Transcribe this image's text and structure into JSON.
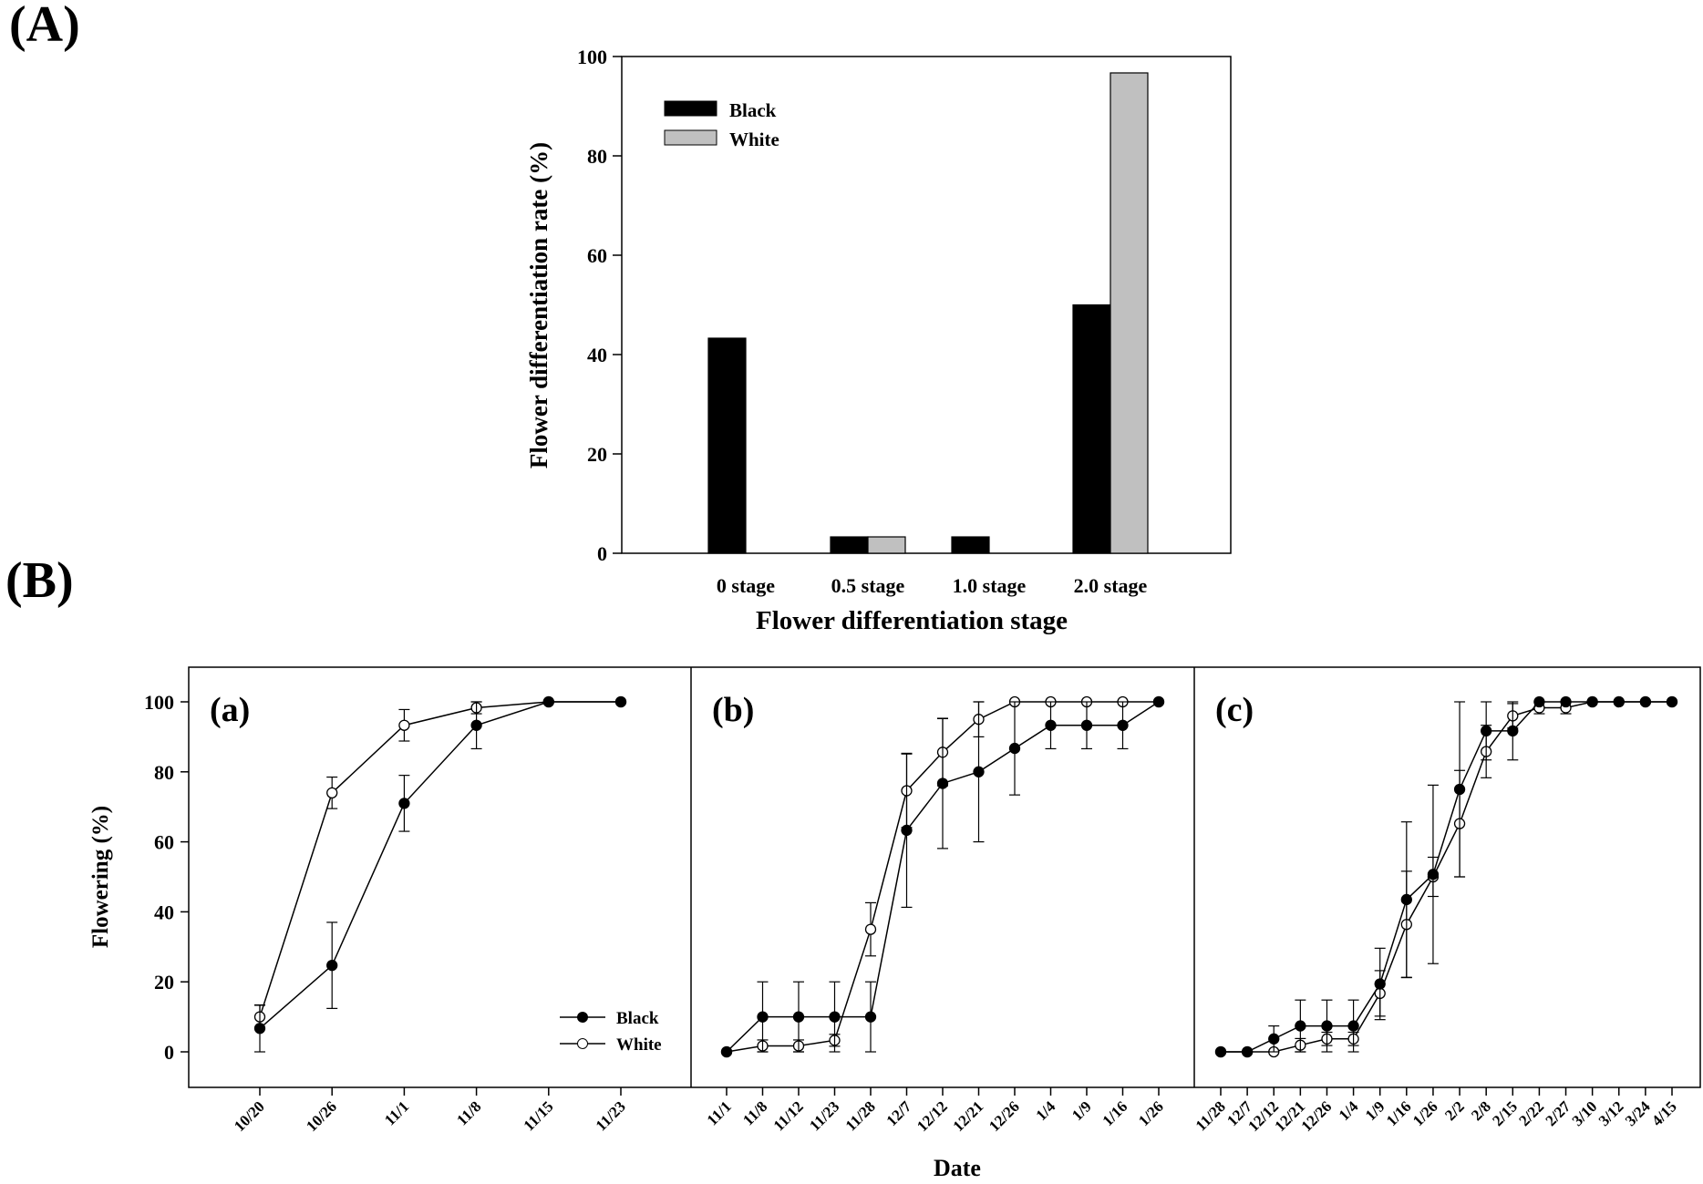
{
  "figure": {
    "panel_a_label": "(A)",
    "panel_b_label": "(B)"
  },
  "chart_data": [
    {
      "id": "A",
      "type": "bar",
      "title": "",
      "xlabel": "Flower differentiation stage",
      "ylabel": "Flower differentiation rate (%)",
      "categories": [
        "0 stage",
        "0.5 stage",
        "1.0 stage",
        "2.0 stage"
      ],
      "ylim": [
        0,
        100
      ],
      "yticks": [
        0,
        20,
        40,
        60,
        80,
        100
      ],
      "grid": false,
      "legend_position": "top-left",
      "series": [
        {
          "name": "Black",
          "color": "#000000",
          "values": [
            43.3,
            3.3,
            3.3,
            50.0
          ]
        },
        {
          "name": "White",
          "color": "#c0c0c0",
          "values": [
            0,
            3.3,
            0,
            96.7
          ]
        }
      ]
    },
    {
      "id": "B",
      "type": "line",
      "xlabel": "Date",
      "ylabel": "Flowering (%)",
      "ylim": [
        -10,
        110
      ],
      "yticks": [
        0,
        20,
        40,
        60,
        80,
        100
      ],
      "legend_position": "bottom-right of panel (a)",
      "legend": [
        {
          "name": "Black",
          "marker": "filled-circle"
        },
        {
          "name": "White",
          "marker": "open-circle"
        }
      ],
      "panels": [
        {
          "label": "(a)",
          "x": [
            "10/20",
            "10/26",
            "11/1",
            "11/8",
            "11/15",
            "11/23"
          ],
          "series": [
            {
              "name": "Black",
              "values": [
                6.7,
                24.7,
                71.0,
                93.3,
                100,
                100
              ],
              "errors": [
                6.7,
                12.3,
                8.0,
                6.7,
                0,
                0
              ]
            },
            {
              "name": "White",
              "values": [
                10.0,
                74.0,
                93.3,
                98.3,
                100,
                100
              ],
              "errors": [
                3.3,
                4.5,
                4.5,
                1.7,
                0,
                0
              ]
            }
          ]
        },
        {
          "label": "(b)",
          "x": [
            "11/1",
            "11/8",
            "11/12",
            "11/23",
            "11/28",
            "12/7",
            "12/12",
            "12/21",
            "12/26",
            "1/4",
            "1/9",
            "1/16",
            "1/26"
          ],
          "series": [
            {
              "name": "Black",
              "values": [
                0,
                10,
                10,
                10,
                10,
                63.3,
                76.7,
                80.0,
                86.7,
                93.3,
                93.3,
                93.3,
                100
              ],
              "errors": [
                0,
                10,
                10,
                10,
                10,
                22.0,
                18.6,
                20.0,
                13.3,
                6.7,
                6.7,
                6.7,
                0
              ]
            },
            {
              "name": "White",
              "values": [
                0,
                1.7,
                1.7,
                3.3,
                35.0,
                74.6,
                85.6,
                95.0,
                100,
                100,
                100,
                100,
                100
              ],
              "errors": [
                0,
                1.7,
                1.7,
                1.7,
                7.6,
                10.5,
                9.6,
                5.0,
                0,
                0,
                0,
                0,
                0
              ]
            }
          ]
        },
        {
          "label": "(c)",
          "x": [
            "11/28",
            "12/7",
            "12/12",
            "12/21",
            "12/26",
            "1/4",
            "1/9",
            "1/16",
            "1/26",
            "2/2",
            "2/8",
            "2/15",
            "2/22",
            "2/27",
            "3/10",
            "3/12",
            "3/24",
            "4/15"
          ],
          "series": [
            {
              "name": "Black",
              "values": [
                0,
                0,
                3.7,
                7.4,
                7.4,
                7.4,
                19.4,
                43.5,
                50.7,
                75.0,
                91.7,
                91.7,
                100,
                100,
                100,
                100,
                100,
                100
              ],
              "errors": [
                0,
                0,
                3.7,
                7.4,
                7.4,
                7.4,
                10.2,
                22.2,
                25.5,
                25.0,
                8.3,
                8.3,
                0,
                0,
                0,
                0,
                0,
                0
              ]
            },
            {
              "name": "White",
              "values": [
                0,
                0,
                0,
                1.9,
                3.7,
                3.7,
                16.7,
                36.4,
                50.0,
                65.2,
                85.8,
                96.0,
                98.3,
                98.3,
                100,
                100,
                100,
                100
              ],
              "errors": [
                0,
                0,
                0,
                1.9,
                1.9,
                1.9,
                6.5,
                15.2,
                5.6,
                15.2,
                7.5,
                3.5,
                1.7,
                1.7,
                0,
                0,
                0,
                0
              ]
            }
          ]
        }
      ]
    }
  ]
}
